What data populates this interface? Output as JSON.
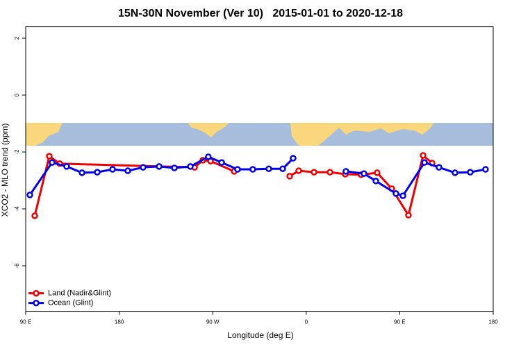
{
  "chart_data": {
    "type": "line",
    "title": "15N-30N November (Ver 10)   2015-01-01 to 2020-12-18",
    "x_label": "Longitude (deg E)",
    "y_label": "XCO2 - MLO trend (ppm)",
    "xlim": [
      90,
      540
    ],
    "xticks": [
      {
        "value": 90,
        "label": "90 E"
      },
      {
        "value": 180,
        "label": "180"
      },
      {
        "value": 270,
        "label": "90 W"
      },
      {
        "value": 360,
        "label": "0"
      },
      {
        "value": 450,
        "label": "90 E"
      },
      {
        "value": 540,
        "label": "180"
      }
    ],
    "ylim": [
      -7.6,
      2.4
    ],
    "yticks": [
      -6,
      -4,
      -2,
      0,
      2
    ],
    "legend": "bottom-left",
    "series": [
      {
        "name": "Land (Nadir&Glint)",
        "color": "#ee0000",
        "x": [
          98.7,
          112.7,
          122.8,
          252.5,
          260.5,
          267.9,
          290.6,
          null,
          344.1,
          352.8,
          367.5,
          382.9,
          397.6,
          412.9,
          428.3,
          442.4,
          458.4,
          472.5,
          481.2
        ],
        "values": [
          -4.24,
          -2.15,
          -2.41,
          -2.54,
          -2.29,
          -2.32,
          -2.68,
          null,
          -2.85,
          -2.66,
          -2.71,
          -2.71,
          -2.78,
          -2.8,
          -2.73,
          -3.29,
          -4.22,
          -2.12,
          -2.39
        ]
      },
      {
        "name": "Ocean (Glint)",
        "color": "#0000ee",
        "x": [
          94,
          115.4,
          129.4,
          144.2,
          158.9,
          173.6,
          188.3,
          203,
          218.4,
          233.1,
          248.5,
          265.8,
          278.6,
          293.9,
          308.6,
          324,
          337.4,
          347.4,
          null,
          398.2,
          415.6,
          427,
          446.4,
          453.1,
          473.8,
          487.8,
          503.2,
          517.9,
          532.6
        ],
        "values": [
          -3.51,
          -2.37,
          -2.51,
          -2.73,
          -2.71,
          -2.61,
          -2.66,
          -2.54,
          -2.51,
          -2.56,
          -2.51,
          -2.17,
          -2.37,
          -2.61,
          -2.61,
          -2.59,
          -2.59,
          -2.22,
          null,
          -2.68,
          -2.76,
          -3.02,
          -3.46,
          -3.54,
          -2.37,
          -2.54,
          -2.73,
          -2.71,
          -2.61
        ]
      }
    ]
  }
}
